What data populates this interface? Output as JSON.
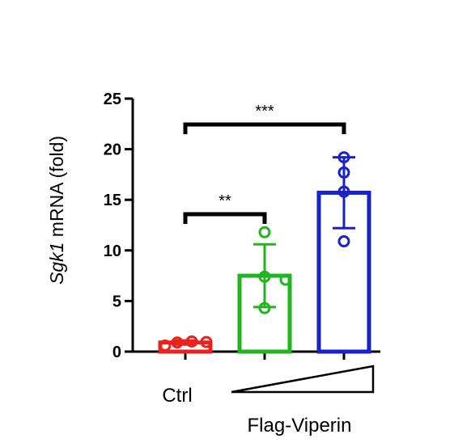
{
  "chart_data": {
    "type": "bar",
    "ylabel_italic": "Sgk1",
    "ylabel_rest": " mRNA (fold)",
    "ylim": [
      0,
      25
    ],
    "yticks": [
      {
        "value": 0,
        "label": "0"
      },
      {
        "value": 5,
        "label": "5"
      },
      {
        "value": 10,
        "label": "10"
      },
      {
        "value": 15,
        "label": "15"
      },
      {
        "value": 20,
        "label": "20"
      },
      {
        "value": 25,
        "label": "25"
      }
    ],
    "bars": [
      {
        "name": "Ctrl",
        "mean": 0.9,
        "sd": 0.2,
        "color": "#e8231e",
        "points": [
          0.6,
          0.9,
          1.0,
          0.95
        ]
      },
      {
        "name": "Flag-Viperin low",
        "mean": 7.5,
        "sd": 3.1,
        "color": "#21b521",
        "points": [
          11.8,
          7.4,
          7.1,
          4.3
        ]
      },
      {
        "name": "Flag-Viperin high",
        "mean": 15.7,
        "sd": 3.5,
        "color": "#1a21c9",
        "points": [
          19.2,
          17.7,
          15.8,
          10.9
        ]
      }
    ],
    "comparisons": [
      {
        "from": 0,
        "to": 1,
        "label": "**"
      },
      {
        "from": 0,
        "to": 2,
        "label": "***"
      }
    ],
    "xlabels": {
      "ctrl": "Ctrl",
      "treatment": "Flag-Viperin"
    }
  }
}
